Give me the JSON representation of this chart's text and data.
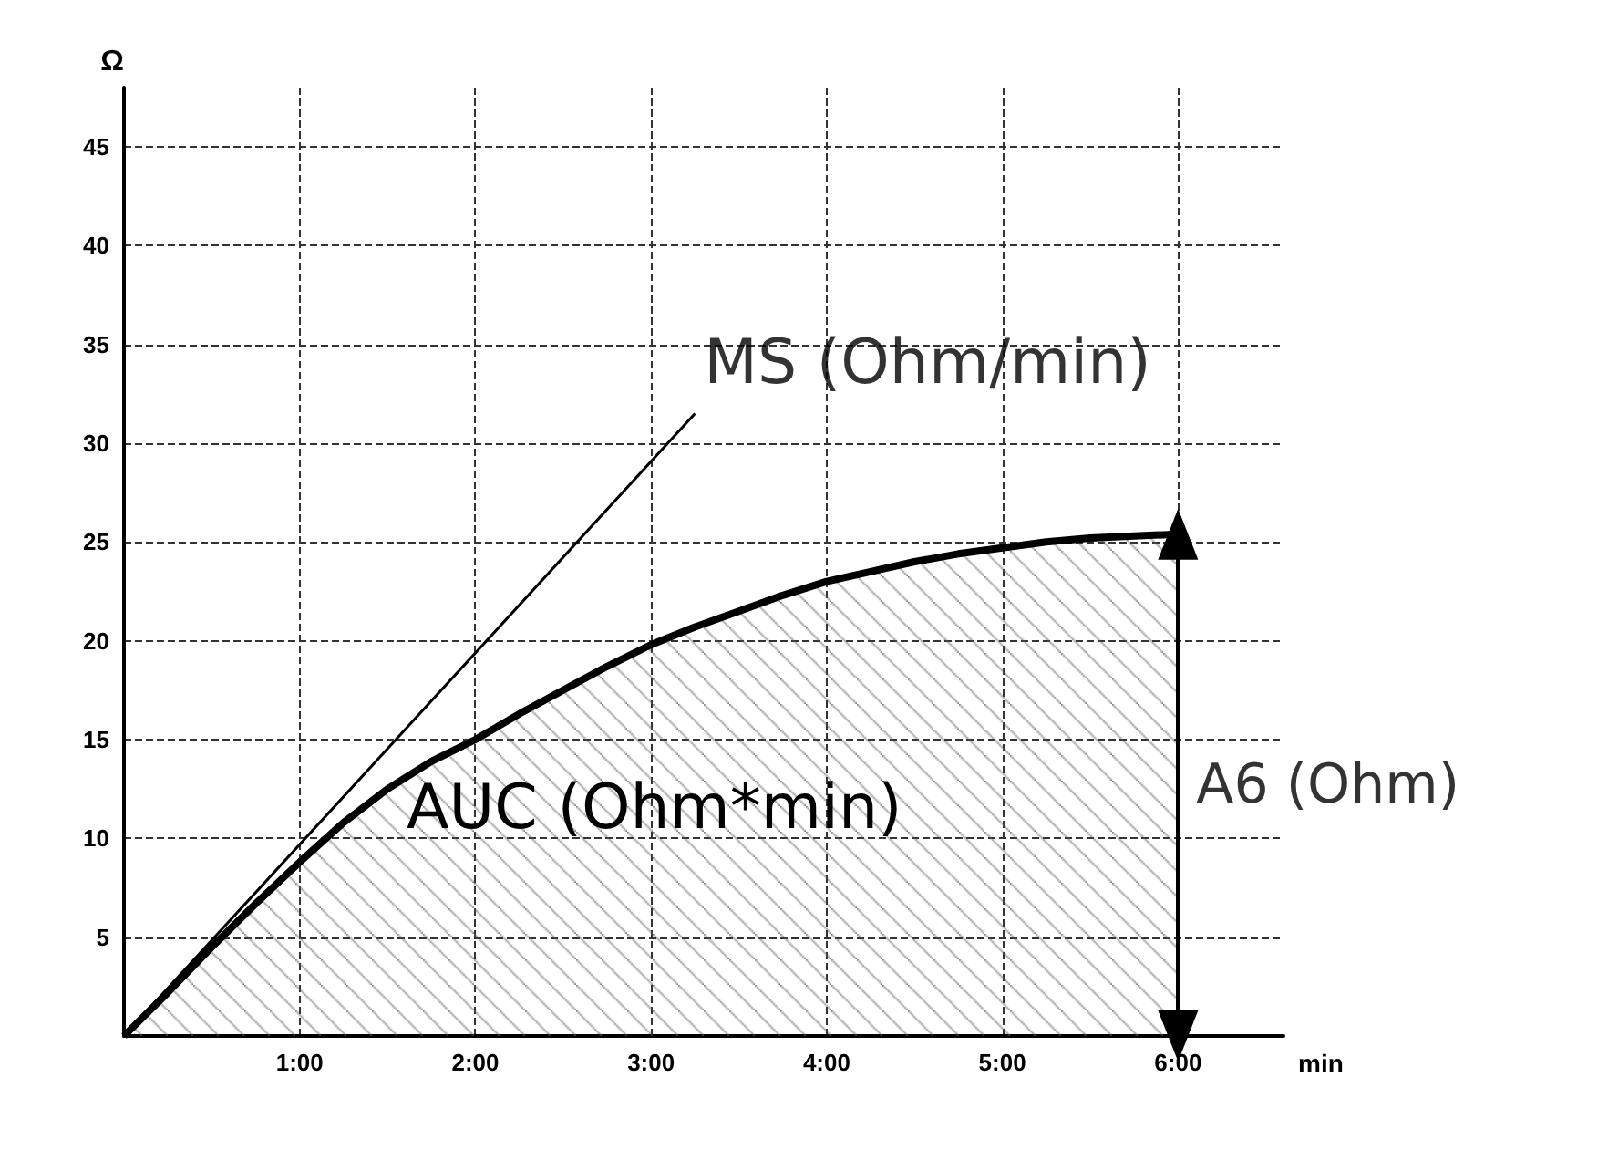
{
  "chart_data": {
    "type": "area",
    "xlabel": "min",
    "ylabel": "Ω",
    "xlim": [
      0,
      6.6
    ],
    "ylim": [
      0,
      48
    ],
    "xticks": [
      {
        "value": 1,
        "label": "1:00"
      },
      {
        "value": 2,
        "label": "2:00"
      },
      {
        "value": 3,
        "label": "3:00"
      },
      {
        "value": 4,
        "label": "4:00"
      },
      {
        "value": 5,
        "label": "5:00"
      },
      {
        "value": 6,
        "label": "6:00"
      }
    ],
    "yticks": [
      5,
      10,
      15,
      20,
      25,
      30,
      35,
      40,
      45
    ],
    "grid": true,
    "marker": "none",
    "series": [
      {
        "color": "#000000",
        "x": [
          0,
          0.25,
          0.5,
          0.75,
          1,
          1.25,
          1.5,
          1.75,
          2,
          2.25,
          2.5,
          2.75,
          3,
          3.25,
          3.5,
          3.75,
          4,
          4.25,
          4.5,
          4.75,
          5,
          5.25,
          5.5,
          5.75,
          6
        ],
        "values": [
          0,
          2.2,
          4.5,
          6.7,
          8.8,
          10.8,
          12.5,
          13.9,
          15,
          16.3,
          17.5,
          18.7,
          19.8,
          20.7,
          21.5,
          22.3,
          23,
          23.5,
          24,
          24.4,
          24.7,
          25,
          25.2,
          25.3,
          25.4
        ]
      },
      {
        "type": "line",
        "color": "#000000",
        "x": [
          0,
          3.25
        ],
        "values": [
          0,
          31.5
        ]
      }
    ],
    "annotations": [
      {
        "text": "MS (Ohm/min)",
        "x": 3.25,
        "y": 31.5
      },
      "AUC (Ohm*min)",
      {
        "text": "A6 (Ohm)",
        "x": 6,
        "y": 12.7
      }
    ]
  }
}
